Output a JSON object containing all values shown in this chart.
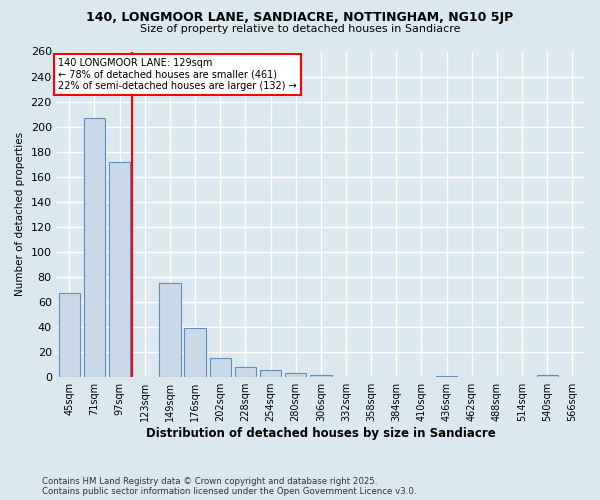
{
  "title1": "140, LONGMOOR LANE, SANDIACRE, NOTTINGHAM, NG10 5JP",
  "title2": "Size of property relative to detached houses in Sandiacre",
  "xlabel": "Distribution of detached houses by size in Sandiacre",
  "ylabel": "Number of detached properties",
  "categories": [
    "45sqm",
    "71sqm",
    "97sqm",
    "123sqm",
    "149sqm",
    "176sqm",
    "202sqm",
    "228sqm",
    "254sqm",
    "280sqm",
    "306sqm",
    "332sqm",
    "358sqm",
    "384sqm",
    "410sqm",
    "436sqm",
    "462sqm",
    "488sqm",
    "514sqm",
    "540sqm",
    "566sqm"
  ],
  "values": [
    67,
    207,
    172,
    0,
    75,
    39,
    15,
    8,
    6,
    3,
    2,
    0,
    0,
    0,
    0,
    1,
    0,
    0,
    0,
    2,
    0
  ],
  "bar_color": "#c9d9e8",
  "bar_edge_color": "#5a8fc0",
  "redline_index": 3,
  "annotation_line1": "140 LONGMOOR LANE: 129sqm",
  "annotation_line2": "← 78% of detached houses are smaller (461)",
  "annotation_line3": "22% of semi-detached houses are larger (132) →",
  "ylim": [
    0,
    260
  ],
  "yticks": [
    0,
    20,
    40,
    60,
    80,
    100,
    120,
    140,
    160,
    180,
    200,
    220,
    240,
    260
  ],
  "footer1": "Contains HM Land Registry data © Crown copyright and database right 2025.",
  "footer2": "Contains public sector information licensed under the Open Government Licence v3.0.",
  "background_color": "#dce8f0",
  "grid_color": "#ffffff"
}
